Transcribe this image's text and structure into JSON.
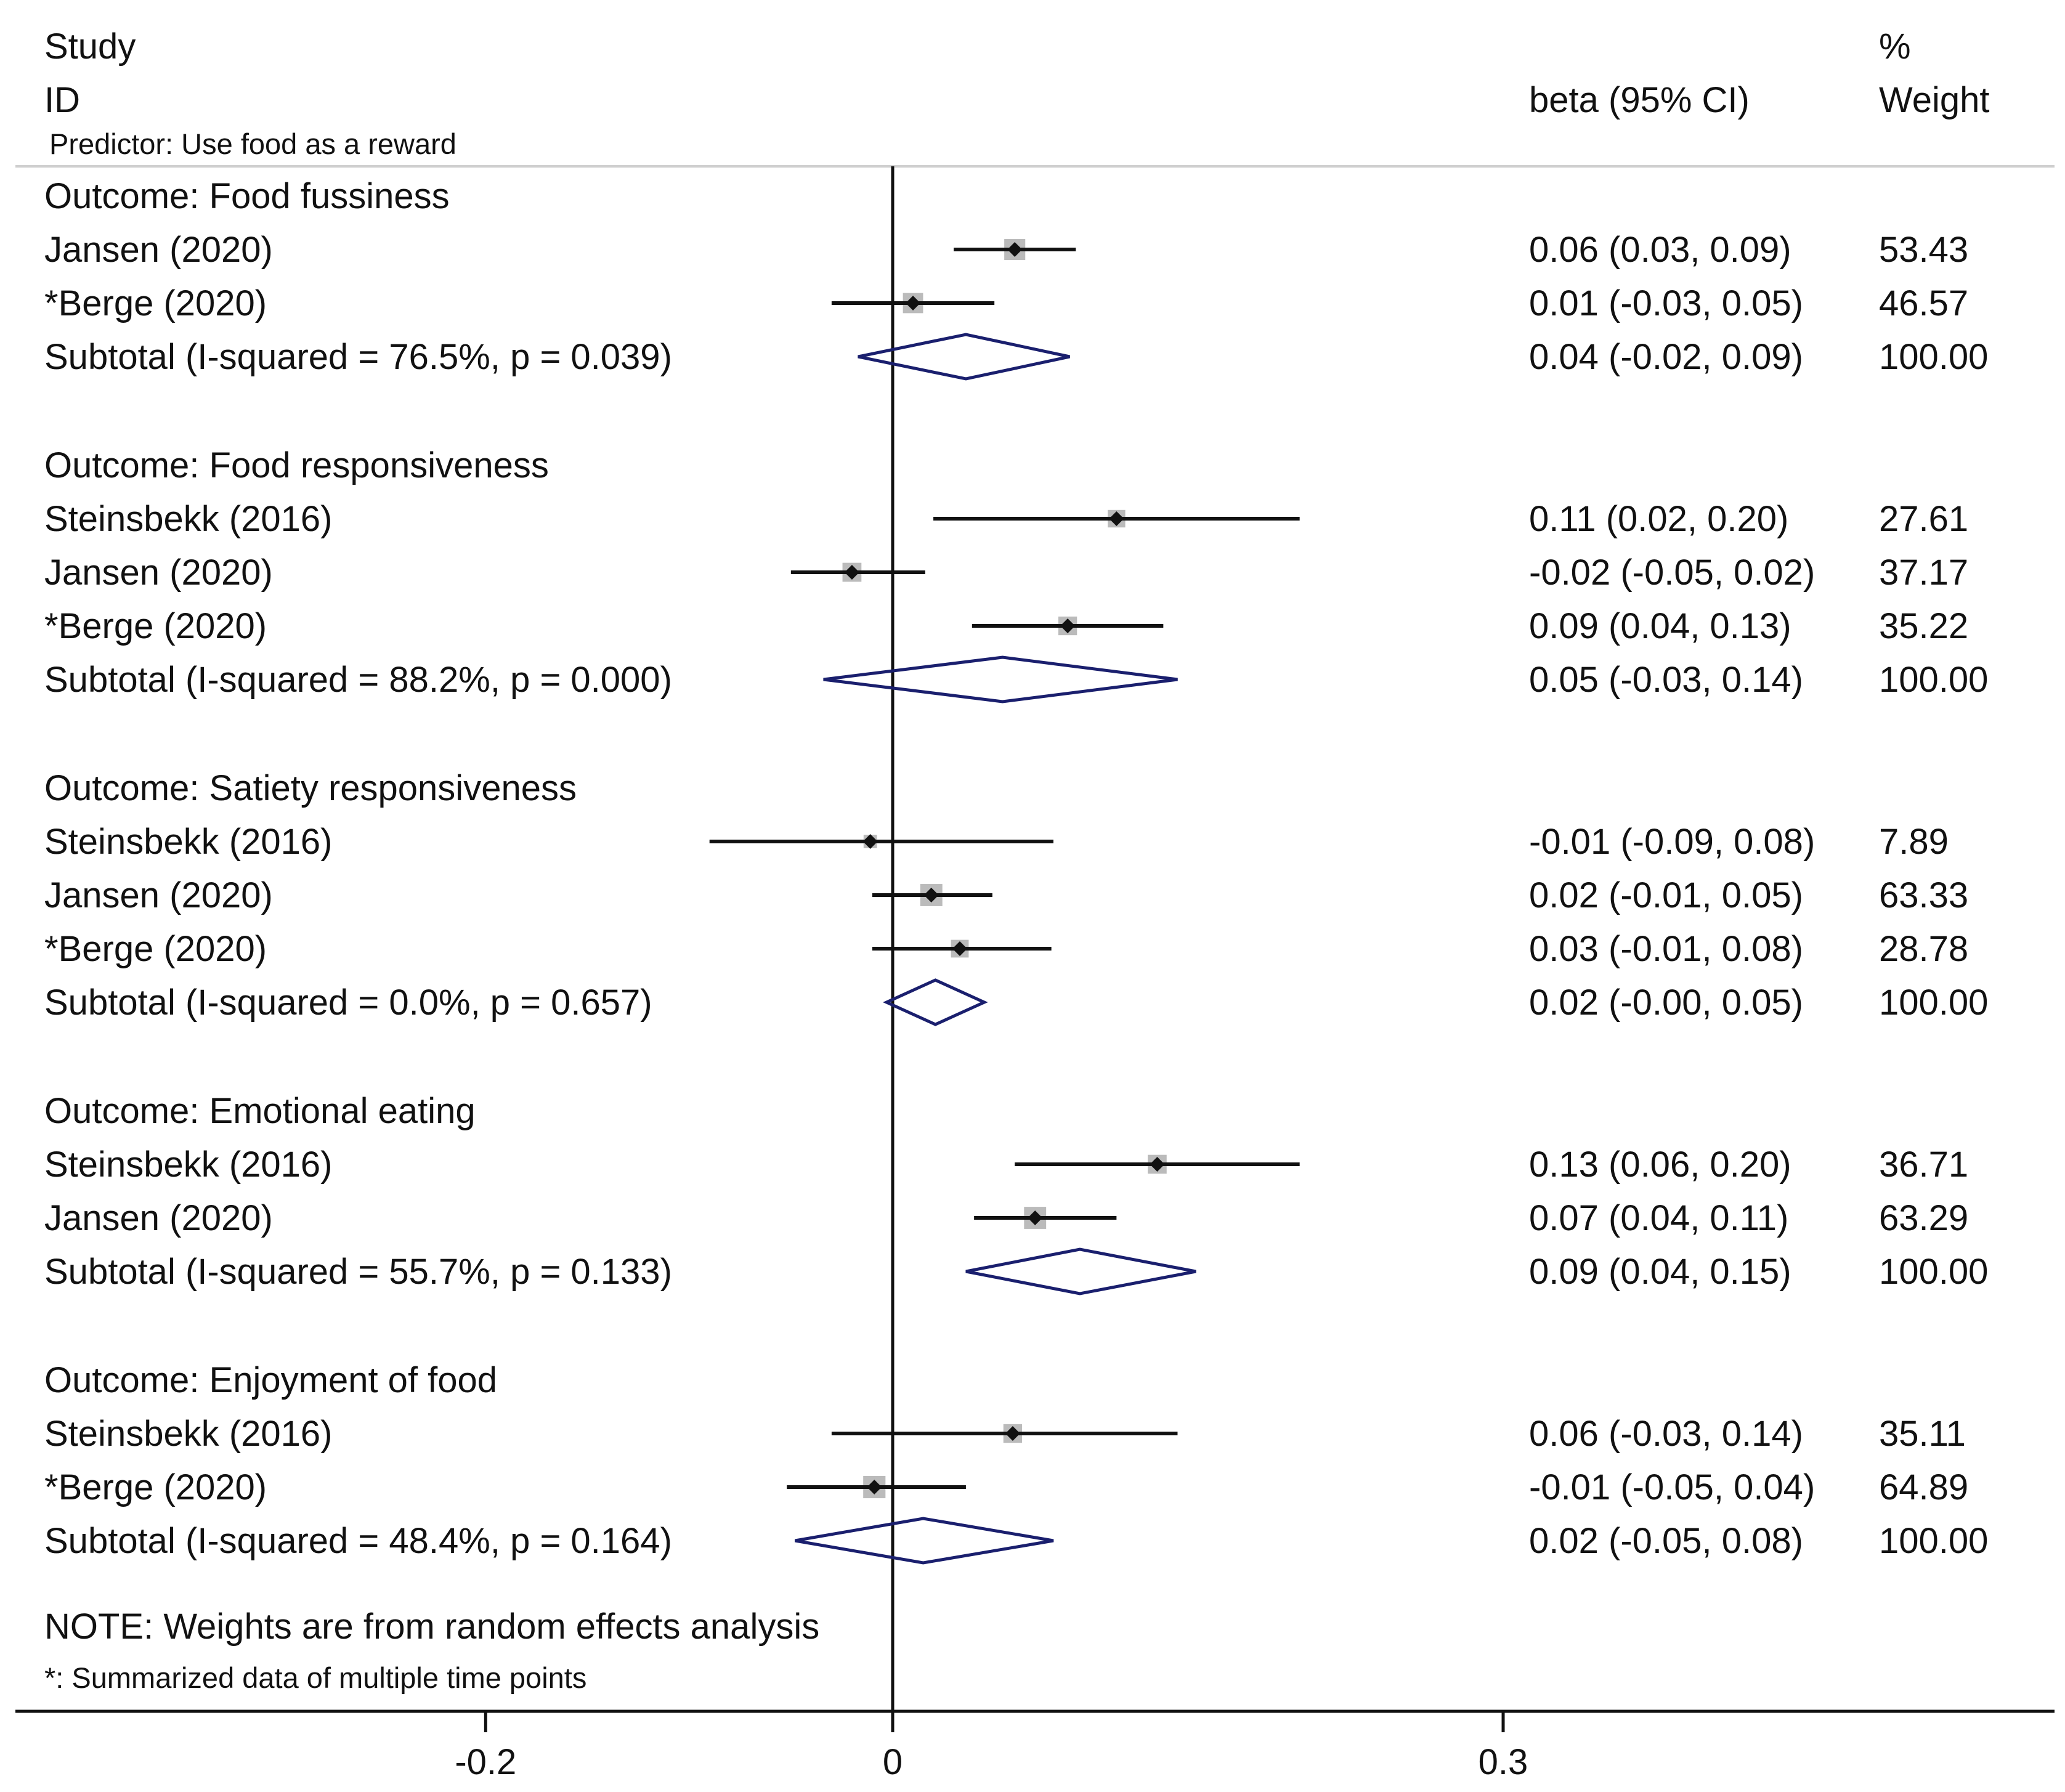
{
  "chart_data": {
    "type": "forest",
    "header": {
      "study": "Study",
      "id": "ID",
      "predictor": "Predictor: Use food as a reward",
      "beta": "beta (95% CI)",
      "pct": "%",
      "weight": "Weight"
    },
    "xaxis": {
      "ticks": [
        -0.2,
        0,
        0.3
      ],
      "tick_labels": [
        "-0.2",
        "0",
        "0.3"
      ],
      "range": [
        -0.44,
        0.57
      ]
    },
    "colors": {
      "diamond": "#1a1f6e",
      "ink": "#111111",
      "box": "#bbbbbb"
    },
    "groups": [
      {
        "title": "Outcome: Food fussiness",
        "studies": [
          {
            "name": "Jansen (2020)",
            "beta": 0.06,
            "lo": 0.03,
            "hi": 0.09,
            "ci_text": "0.06 (0.03, 0.09)",
            "weight": "53.43",
            "w": 53.43
          },
          {
            "name": "*Berge (2020)",
            "beta": 0.01,
            "lo": -0.03,
            "hi": 0.05,
            "ci_text": "0.01 (-0.03, 0.05)",
            "weight": "46.57",
            "w": 46.57
          }
        ],
        "subtotal": {
          "label": "Subtotal  (I-squared = 76.5%, p = 0.039)",
          "beta": 0.036,
          "lo": -0.017,
          "hi": 0.087,
          "ci_text": "0.04 (-0.02, 0.09)",
          "weight": "100.00"
        }
      },
      {
        "title": "Outcome: Food responsiveness",
        "studies": [
          {
            "name": "Steinsbekk (2016)",
            "beta": 0.11,
            "lo": 0.02,
            "hi": 0.2,
            "ci_text": "0.11 (0.02, 0.20)",
            "weight": "27.61",
            "w": 27.61
          },
          {
            "name": "Jansen (2020)",
            "beta": -0.02,
            "lo": -0.05,
            "hi": 0.016,
            "ci_text": "-0.02 (-0.05, 0.02)",
            "weight": "37.17",
            "w": 37.17
          },
          {
            "name": "*Berge (2020)",
            "beta": 0.086,
            "lo": 0.039,
            "hi": 0.133,
            "ci_text": "0.09 (0.04, 0.13)",
            "weight": "35.22",
            "w": 35.22
          }
        ],
        "subtotal": {
          "label": "Subtotal  (I-squared = 88.2%, p = 0.000)",
          "beta": 0.054,
          "lo": -0.034,
          "hi": 0.14,
          "ci_text": "0.05 (-0.03, 0.14)",
          "weight": "100.00"
        }
      },
      {
        "title": "Outcome: Satiety responsiveness",
        "studies": [
          {
            "name": "Steinsbekk (2016)",
            "beta": -0.011,
            "lo": -0.09,
            "hi": 0.079,
            "ci_text": "-0.01 (-0.09, 0.08)",
            "weight": "7.89",
            "w": 7.89
          },
          {
            "name": "Jansen (2020)",
            "beta": 0.019,
            "lo": -0.01,
            "hi": 0.049,
            "ci_text": "0.02 (-0.01, 0.05)",
            "weight": "63.33",
            "w": 63.33
          },
          {
            "name": "*Berge (2020)",
            "beta": 0.033,
            "lo": -0.01,
            "hi": 0.078,
            "ci_text": "0.03 (-0.01, 0.08)",
            "weight": "28.78",
            "w": 28.78
          }
        ],
        "subtotal": {
          "label": "Subtotal  (I-squared = 0.0%, p = 0.657)",
          "beta": 0.021,
          "lo": -0.003,
          "hi": 0.045,
          "ci_text": "0.02 (-0.00, 0.05)",
          "weight": "100.00"
        }
      },
      {
        "title": "Outcome: Emotional eating",
        "studies": [
          {
            "name": "Steinsbekk (2016)",
            "beta": 0.13,
            "lo": 0.06,
            "hi": 0.2,
            "ci_text": "0.13 (0.06, 0.20)",
            "weight": "36.71",
            "w": 36.71
          },
          {
            "name": "Jansen (2020)",
            "beta": 0.07,
            "lo": 0.04,
            "hi": 0.11,
            "ci_text": "0.07 (0.04, 0.11)",
            "weight": "63.29",
            "w": 63.29
          }
        ],
        "subtotal": {
          "label": "Subtotal  (I-squared = 55.7%, p = 0.133)",
          "beta": 0.092,
          "lo": 0.036,
          "hi": 0.149,
          "ci_text": "0.09 (0.04, 0.15)",
          "weight": "100.00"
        }
      },
      {
        "title": "Outcome: Enjoyment of food",
        "studies": [
          {
            "name": "Steinsbekk (2016)",
            "beta": 0.059,
            "lo": -0.03,
            "hi": 0.14,
            "ci_text": "0.06 (-0.03, 0.14)",
            "weight": "35.11",
            "w": 35.11
          },
          {
            "name": "*Berge (2020)",
            "beta": -0.009,
            "lo": -0.052,
            "hi": 0.036,
            "ci_text": "-0.01 (-0.05, 0.04)",
            "weight": "64.89",
            "w": 64.89
          }
        ],
        "subtotal": {
          "label": "Subtotal  (I-squared = 48.4%, p = 0.164)",
          "beta": 0.015,
          "lo": -0.048,
          "hi": 0.079,
          "ci_text": "0.02 (-0.05, 0.08)",
          "weight": "100.00"
        }
      }
    ],
    "notes": {
      "weights": "NOTE: Weights are from random effects analysis",
      "summarized": "*: Summarized data of multiple time points"
    }
  }
}
